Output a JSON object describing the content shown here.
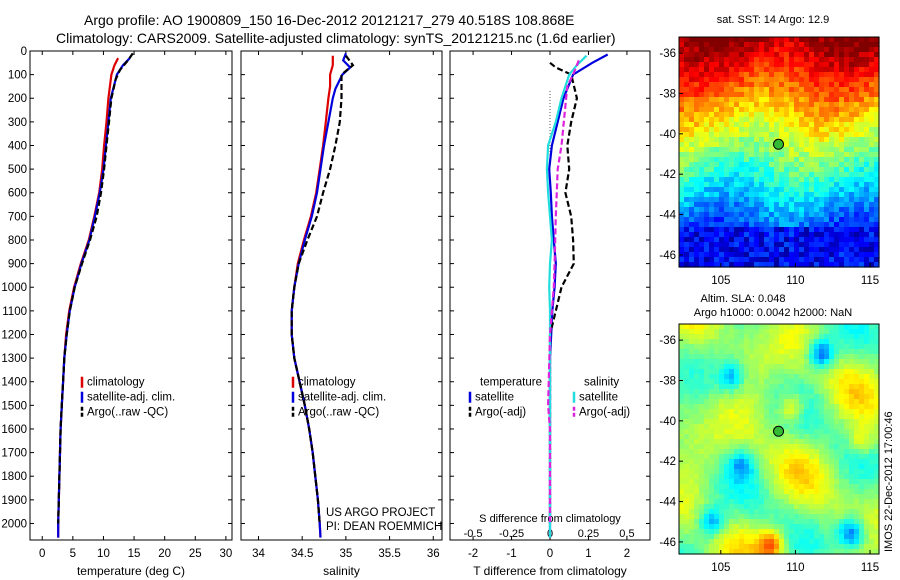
{
  "header": {
    "title_line1": "Argo profile: AO 1900809_150 16-Dec-2012 20121217_279 40.518S 108.868E",
    "title_line2": "Climatology: CARS2009. Satellite-adjusted climatology: synTS_20121215.nc (1.6d earlier)"
  },
  "credits": {
    "project": "US ARGO PROJECT",
    "pi": "PI: DEAN ROEMMICH",
    "stamp": "IMOS 22-Dec-2012 17:00:46"
  },
  "colors": {
    "climatology": "#dd0000",
    "satellite": "#0000dd",
    "argo": "#000000",
    "satellite_s": "#22dddd",
    "argo_s": "#dd22dd",
    "marker": "#33bb33"
  },
  "chart_data": [
    {
      "type": "line",
      "id": "temperature",
      "xlabel": "temperature (deg C)",
      "ylabel": "",
      "xlim": [
        -2,
        31
      ],
      "ylim": [
        2070,
        0
      ],
      "y_reversed": true,
      "xticks": [
        0,
        5,
        10,
        15,
        20,
        25,
        30
      ],
      "yticks": [
        0,
        100,
        200,
        300,
        400,
        500,
        600,
        700,
        800,
        900,
        1000,
        1100,
        1200,
        1300,
        1400,
        1500,
        1600,
        1700,
        1800,
        1900,
        2000
      ],
      "legend": [
        "climatology",
        "satellite-adj. clim.",
        "Argo(..raw -QC)"
      ],
      "legend_position": "lower-center",
      "series": [
        {
          "name": "climatology",
          "color": "#dd0000",
          "dash": false,
          "points": [
            [
              12.4,
              30
            ],
            [
              11.8,
              60
            ],
            [
              11.3,
              100
            ],
            [
              10.8,
              200
            ],
            [
              10.5,
              300
            ],
            [
              10.1,
              400
            ],
            [
              9.8,
              500
            ],
            [
              9.3,
              600
            ],
            [
              8.5,
              700
            ],
            [
              7.6,
              800
            ],
            [
              6.3,
              900
            ],
            [
              5.2,
              1000
            ],
            [
              4.4,
              1100
            ],
            [
              3.9,
              1200
            ],
            [
              3.6,
              1300
            ],
            [
              3.4,
              1400
            ],
            [
              3.2,
              1500
            ],
            [
              3.0,
              1600
            ],
            [
              2.9,
              1700
            ],
            [
              2.8,
              1800
            ],
            [
              2.7,
              1900
            ],
            [
              2.6,
              2000
            ],
            [
              2.6,
              2060
            ]
          ]
        },
        {
          "name": "satellite-adj. clim.",
          "color": "#0000dd",
          "dash": false,
          "points": [
            [
              14.3,
              30
            ],
            [
              13.2,
              60
            ],
            [
              12.2,
              100
            ],
            [
              11.2,
              200
            ],
            [
              10.8,
              300
            ],
            [
              10.4,
              400
            ],
            [
              10.0,
              500
            ],
            [
              9.4,
              600
            ],
            [
              8.6,
              700
            ],
            [
              7.7,
              800
            ],
            [
              6.4,
              900
            ],
            [
              5.3,
              1000
            ],
            [
              4.5,
              1100
            ],
            [
              4.0,
              1200
            ],
            [
              3.6,
              1300
            ],
            [
              3.4,
              1400
            ],
            [
              3.2,
              1500
            ],
            [
              3.0,
              1600
            ],
            [
              2.9,
              1700
            ],
            [
              2.8,
              1800
            ],
            [
              2.7,
              1900
            ],
            [
              2.6,
              2000
            ],
            [
              2.6,
              2060
            ]
          ]
        },
        {
          "name": "Argo(..raw -QC)",
          "color": "#000000",
          "dash": true,
          "points": [
            [
              14.8,
              10
            ],
            [
              14.0,
              40
            ],
            [
              12.7,
              80
            ],
            [
              12.0,
              120
            ],
            [
              11.3,
              200
            ],
            [
              10.9,
              300
            ],
            [
              10.5,
              400
            ],
            [
              10.1,
              500
            ],
            [
              9.6,
              600
            ],
            [
              8.9,
              700
            ],
            [
              7.8,
              800
            ],
            [
              6.5,
              900
            ],
            [
              5.3,
              1000
            ],
            [
              4.5,
              1100
            ],
            [
              4.0,
              1200
            ],
            [
              3.6,
              1300
            ],
            [
              3.4,
              1400
            ],
            [
              3.2,
              1500
            ],
            [
              3.0,
              1600
            ],
            [
              2.9,
              1700
            ],
            [
              2.8,
              1800
            ],
            [
              2.7,
              1900
            ],
            [
              2.6,
              2000
            ]
          ]
        }
      ]
    },
    {
      "type": "line",
      "id": "salinity",
      "xlabel": "salinity",
      "ylabel": "",
      "xlim": [
        33.8,
        36.1
      ],
      "ylim": [
        2070,
        0
      ],
      "y_reversed": true,
      "xticks": [
        34,
        34.5,
        35,
        35.5,
        36
      ],
      "legend": [
        "climatology",
        "satellite-adj. clim.",
        "Argo(..raw -QC)"
      ],
      "legend_position": "lower-center",
      "series": [
        {
          "name": "climatology",
          "color": "#dd0000",
          "dash": false,
          "points": [
            [
              34.85,
              20
            ],
            [
              34.85,
              60
            ],
            [
              34.82,
              100
            ],
            [
              34.82,
              150
            ],
            [
              34.8,
              200
            ],
            [
              34.77,
              300
            ],
            [
              34.74,
              400
            ],
            [
              34.7,
              500
            ],
            [
              34.66,
              600
            ],
            [
              34.6,
              700
            ],
            [
              34.52,
              800
            ],
            [
              34.45,
              900
            ],
            [
              34.41,
              1000
            ],
            [
              34.38,
              1100
            ],
            [
              34.38,
              1200
            ],
            [
              34.41,
              1300
            ],
            [
              34.47,
              1400
            ],
            [
              34.53,
              1500
            ],
            [
              34.58,
              1600
            ],
            [
              34.62,
              1700
            ],
            [
              34.65,
              1800
            ],
            [
              34.68,
              1900
            ],
            [
              34.7,
              2000
            ],
            [
              34.71,
              2060
            ]
          ]
        },
        {
          "name": "satellite-adj. clim.",
          "color": "#0000dd",
          "dash": false,
          "points": [
            [
              35.0,
              10
            ],
            [
              34.97,
              40
            ],
            [
              35.05,
              70
            ],
            [
              34.96,
              100
            ],
            [
              34.88,
              160
            ],
            [
              34.85,
              200
            ],
            [
              34.8,
              300
            ],
            [
              34.75,
              400
            ],
            [
              34.71,
              500
            ],
            [
              34.67,
              600
            ],
            [
              34.61,
              700
            ],
            [
              34.53,
              800
            ],
            [
              34.46,
              900
            ],
            [
              34.41,
              1000
            ],
            [
              34.38,
              1100
            ],
            [
              34.38,
              1200
            ],
            [
              34.41,
              1300
            ],
            [
              34.47,
              1400
            ],
            [
              34.53,
              1500
            ],
            [
              34.58,
              1600
            ],
            [
              34.62,
              1700
            ],
            [
              34.65,
              1800
            ],
            [
              34.68,
              1900
            ],
            [
              34.7,
              2000
            ],
            [
              34.71,
              2060
            ]
          ]
        },
        {
          "name": "Argo(..raw -QC)",
          "color": "#000000",
          "dash": true,
          "points": [
            [
              35.0,
              20
            ],
            [
              35.08,
              60
            ],
            [
              34.95,
              100
            ],
            [
              34.95,
              200
            ],
            [
              34.93,
              300
            ],
            [
              34.88,
              400
            ],
            [
              34.82,
              500
            ],
            [
              34.74,
              600
            ],
            [
              34.67,
              700
            ],
            [
              34.56,
              800
            ],
            [
              34.46,
              900
            ],
            [
              34.41,
              1000
            ],
            [
              34.38,
              1100
            ],
            [
              34.38,
              1200
            ],
            [
              34.41,
              1300
            ],
            [
              34.47,
              1400
            ],
            [
              34.53,
              1500
            ],
            [
              34.58,
              1600
            ],
            [
              34.62,
              1700
            ],
            [
              34.65,
              1800
            ],
            [
              34.68,
              1900
            ],
            [
              34.7,
              2000
            ]
          ]
        }
      ]
    },
    {
      "type": "line",
      "id": "difference",
      "xlabel": "T difference from climatology",
      "xlabel_top": "S difference from climatology",
      "xlim": [
        -2.6,
        2.6
      ],
      "ylim": [
        2070,
        0
      ],
      "y_reversed": true,
      "xticks": [
        -2,
        -1,
        0,
        1,
        2
      ],
      "xticks_s": [
        -0.5,
        -0.25,
        0,
        0.25,
        0.5
      ],
      "legend_headers": [
        "temperature",
        "salinity"
      ],
      "legend": [
        "satellite",
        "Argo(-adj)",
        "satellite",
        "Argo(-adj)"
      ],
      "legend_position": "lower-center",
      "series": [
        {
          "name": "satellite",
          "color": "#0000dd",
          "dash": false,
          "points": [
            [
              1.5,
              15
            ],
            [
              1.1,
              50
            ],
            [
              0.6,
              100
            ],
            [
              0.35,
              200
            ],
            [
              0.2,
              300
            ],
            [
              0.05,
              400
            ],
            [
              -0.02,
              500
            ],
            [
              0.02,
              600
            ],
            [
              0.05,
              700
            ],
            [
              0.1,
              800
            ],
            [
              0.15,
              900
            ],
            [
              0.12,
              1000
            ],
            [
              0.06,
              1100
            ],
            [
              0.03,
              1200
            ],
            [
              0.0,
              1300
            ],
            [
              0.0,
              2060
            ]
          ]
        },
        {
          "name": "Argo(-adj)",
          "color": "#000000",
          "dash": true,
          "points": [
            [
              0.0,
              50
            ],
            [
              0.15,
              70
            ],
            [
              0.55,
              100
            ],
            [
              0.7,
              200
            ],
            [
              0.55,
              300
            ],
            [
              0.45,
              400
            ],
            [
              0.5,
              500
            ],
            [
              0.4,
              600
            ],
            [
              0.55,
              700
            ],
            [
              0.6,
              800
            ],
            [
              0.62,
              900
            ],
            [
              0.3,
              1000
            ],
            [
              0.15,
              1100
            ],
            [
              0.0,
              1200
            ],
            [
              0.0,
              2000
            ]
          ]
        },
        {
          "name": "satellite",
          "color": "#22dddd",
          "dash": false,
          "points": [
            [
              0.95,
              20
            ],
            [
              0.7,
              60
            ],
            [
              0.5,
              100
            ],
            [
              0.3,
              200
            ],
            [
              0.15,
              300
            ],
            [
              -0.05,
              400
            ],
            [
              -0.08,
              500
            ],
            [
              -0.05,
              600
            ],
            [
              0.0,
              700
            ],
            [
              0.05,
              800
            ],
            [
              0.0,
              900
            ],
            [
              -0.02,
              1000
            ],
            [
              0.0,
              1100
            ],
            [
              0.0,
              2060
            ]
          ]
        },
        {
          "name": "Argo(-adj)",
          "color": "#dd22dd",
          "dash": true,
          "points": [
            [
              0.75,
              40
            ],
            [
              0.6,
              100
            ],
            [
              0.45,
              150
            ],
            [
              0.3,
              400
            ],
            [
              0.2,
              500
            ],
            [
              0.15,
              700
            ],
            [
              0.12,
              900
            ],
            [
              0.1,
              1000
            ],
            [
              0.05,
              1100
            ],
            [
              0.0,
              1200
            ],
            [
              -0.05,
              1500
            ],
            [
              0.0,
              1600
            ],
            [
              0.0,
              2000
            ]
          ]
        }
      ]
    },
    {
      "type": "heatmap",
      "id": "sst_map",
      "title": "sat. SST: 14 Argo: 12.9",
      "xlim": [
        102.2,
        115.6
      ],
      "ylim": [
        -46.6,
        -35.2
      ],
      "xticks": [
        105,
        110,
        115
      ],
      "yticks": [
        -36,
        -38,
        -40,
        -42,
        -44,
        -46
      ],
      "marker": {
        "lon": 108.868,
        "lat": -40.518
      }
    },
    {
      "type": "heatmap",
      "id": "sla_map",
      "title_line1": "Altim. SLA: 0.048",
      "title_line2": "Argo h1000: 0.0042 h2000: NaN",
      "xlim": [
        102.2,
        115.6
      ],
      "ylim": [
        -46.6,
        -35.2
      ],
      "xticks": [
        105,
        110,
        115
      ],
      "yticks": [
        -36,
        -38,
        -40,
        -42,
        -44,
        -46
      ],
      "marker": {
        "lon": 108.868,
        "lat": -40.518
      }
    }
  ]
}
